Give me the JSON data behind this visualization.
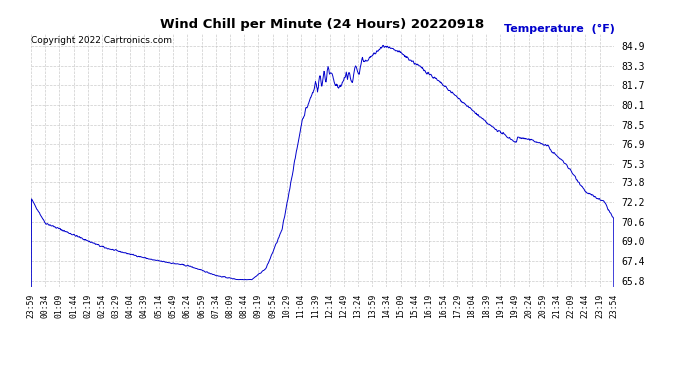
{
  "title": "Wind Chill per Minute (24 Hours) 20220918",
  "ylabel": "Temperature  (°F)",
  "copyright_text": "Copyright 2022 Cartronics.com",
  "line_color": "#0000cc",
  "background_color": "#ffffff",
  "plot_bg_color": "#ffffff",
  "grid_color": "#c0c0c0",
  "ylabel_color": "#0000cc",
  "title_color": "#000000",
  "yticks": [
    65.8,
    67.4,
    69.0,
    70.6,
    72.2,
    73.8,
    75.3,
    76.9,
    78.5,
    80.1,
    81.7,
    83.3,
    84.9
  ],
  "ylim": [
    65.3,
    85.9
  ],
  "xtick_labels": [
    "23:59",
    "00:34",
    "01:09",
    "01:44",
    "02:19",
    "02:54",
    "03:29",
    "04:04",
    "04:39",
    "05:14",
    "05:49",
    "06:24",
    "06:59",
    "07:34",
    "08:09",
    "08:44",
    "09:19",
    "09:54",
    "10:29",
    "11:04",
    "11:39",
    "12:14",
    "12:49",
    "13:24",
    "13:59",
    "14:34",
    "15:09",
    "15:44",
    "16:19",
    "16:54",
    "17:29",
    "18:04",
    "18:39",
    "19:14",
    "19:49",
    "20:24",
    "20:59",
    "21:34",
    "22:09",
    "22:44",
    "23:19",
    "23:54"
  ]
}
